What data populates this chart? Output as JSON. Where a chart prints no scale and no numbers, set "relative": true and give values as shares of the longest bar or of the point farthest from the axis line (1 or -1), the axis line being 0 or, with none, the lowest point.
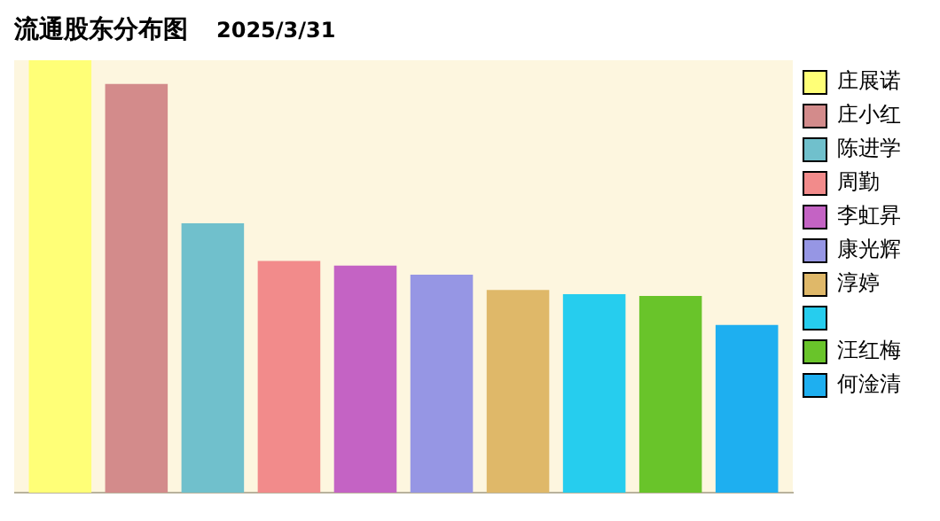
{
  "chart_data": {
    "type": "bar",
    "title": "流通股东分布图",
    "subtitle": "2025/3/31",
    "relative": true,
    "legend": "right",
    "categories": [
      null
    ],
    "series": [
      {
        "name": "庄展诺",
        "color": "#ffff77",
        "values": [
          1
        ]
      },
      {
        "name": "庄小红",
        "color": "#d38b8b",
        "values": [
          0.945
        ]
      },
      {
        "name": "陈进学",
        "color": "#70c0cc",
        "values": [
          0.623
        ]
      },
      {
        "name": "周勤",
        "color": "#f28b8b",
        "values": [
          0.536
        ]
      },
      {
        "name": "李虹昇",
        "color": "#c463c4",
        "values": [
          0.525
        ]
      },
      {
        "name": "康光辉",
        "color": "#9696e4",
        "values": [
          0.504
        ]
      },
      {
        "name": "淳婷",
        "color": "#dfb869",
        "values": [
          0.469
        ]
      },
      {
        "color": "#26cdee",
        "values": [
          0.459
        ]
      },
      {
        "name": "汪红梅",
        "color": "#69c42a",
        "values": [
          0.455
        ]
      },
      {
        "name": "何淦清",
        "color": "#1eaff0",
        "values": [
          0.388
        ]
      }
    ]
  }
}
